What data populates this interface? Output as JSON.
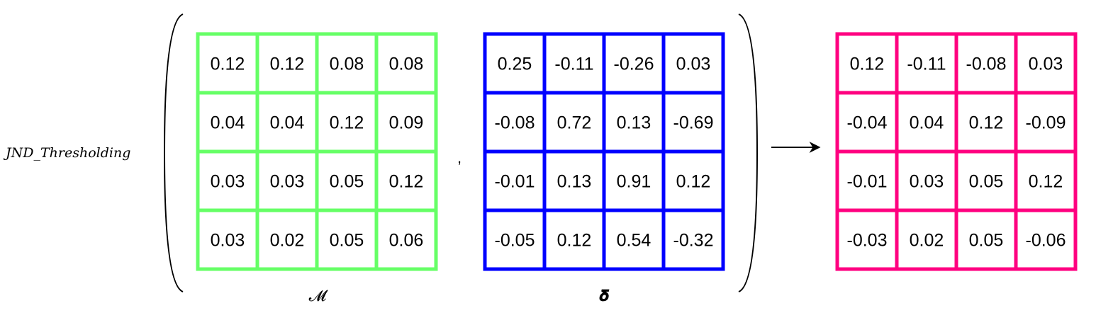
{
  "function_label": "JND_Thresholding",
  "separator": ",",
  "matrices": [
    {
      "id": "M",
      "label": "𝓜",
      "border_color": "#66ff66",
      "rows": [
        [
          "0.12",
          "0.12",
          "0.08",
          "0.08"
        ],
        [
          "0.04",
          "0.04",
          "0.12",
          "0.09"
        ],
        [
          "0.03",
          "0.03",
          "0.05",
          "0.12"
        ],
        [
          "0.03",
          "0.02",
          "0.05",
          "0.06"
        ]
      ]
    },
    {
      "id": "delta",
      "label": "𝜹",
      "border_color": "#0000ff",
      "rows": [
        [
          "0.25",
          "-0.11",
          "-0.26",
          "0.03"
        ],
        [
          "-0.08",
          "0.72",
          "0.13",
          "-0.69"
        ],
        [
          "-0.01",
          "0.13",
          "0.91",
          "0.12"
        ],
        [
          "-0.05",
          "0.12",
          "0.54",
          "-0.32"
        ]
      ]
    },
    {
      "id": "result",
      "label": "",
      "border_color": "#ff0080",
      "rows": [
        [
          "0.12",
          "-0.11",
          "-0.08",
          "0.03"
        ],
        [
          "-0.04",
          "0.04",
          "0.12",
          "-0.09"
        ],
        [
          "-0.01",
          "0.03",
          "0.05",
          "0.12"
        ],
        [
          "-0.03",
          "0.02",
          "0.05",
          "-0.06"
        ]
      ]
    }
  ]
}
